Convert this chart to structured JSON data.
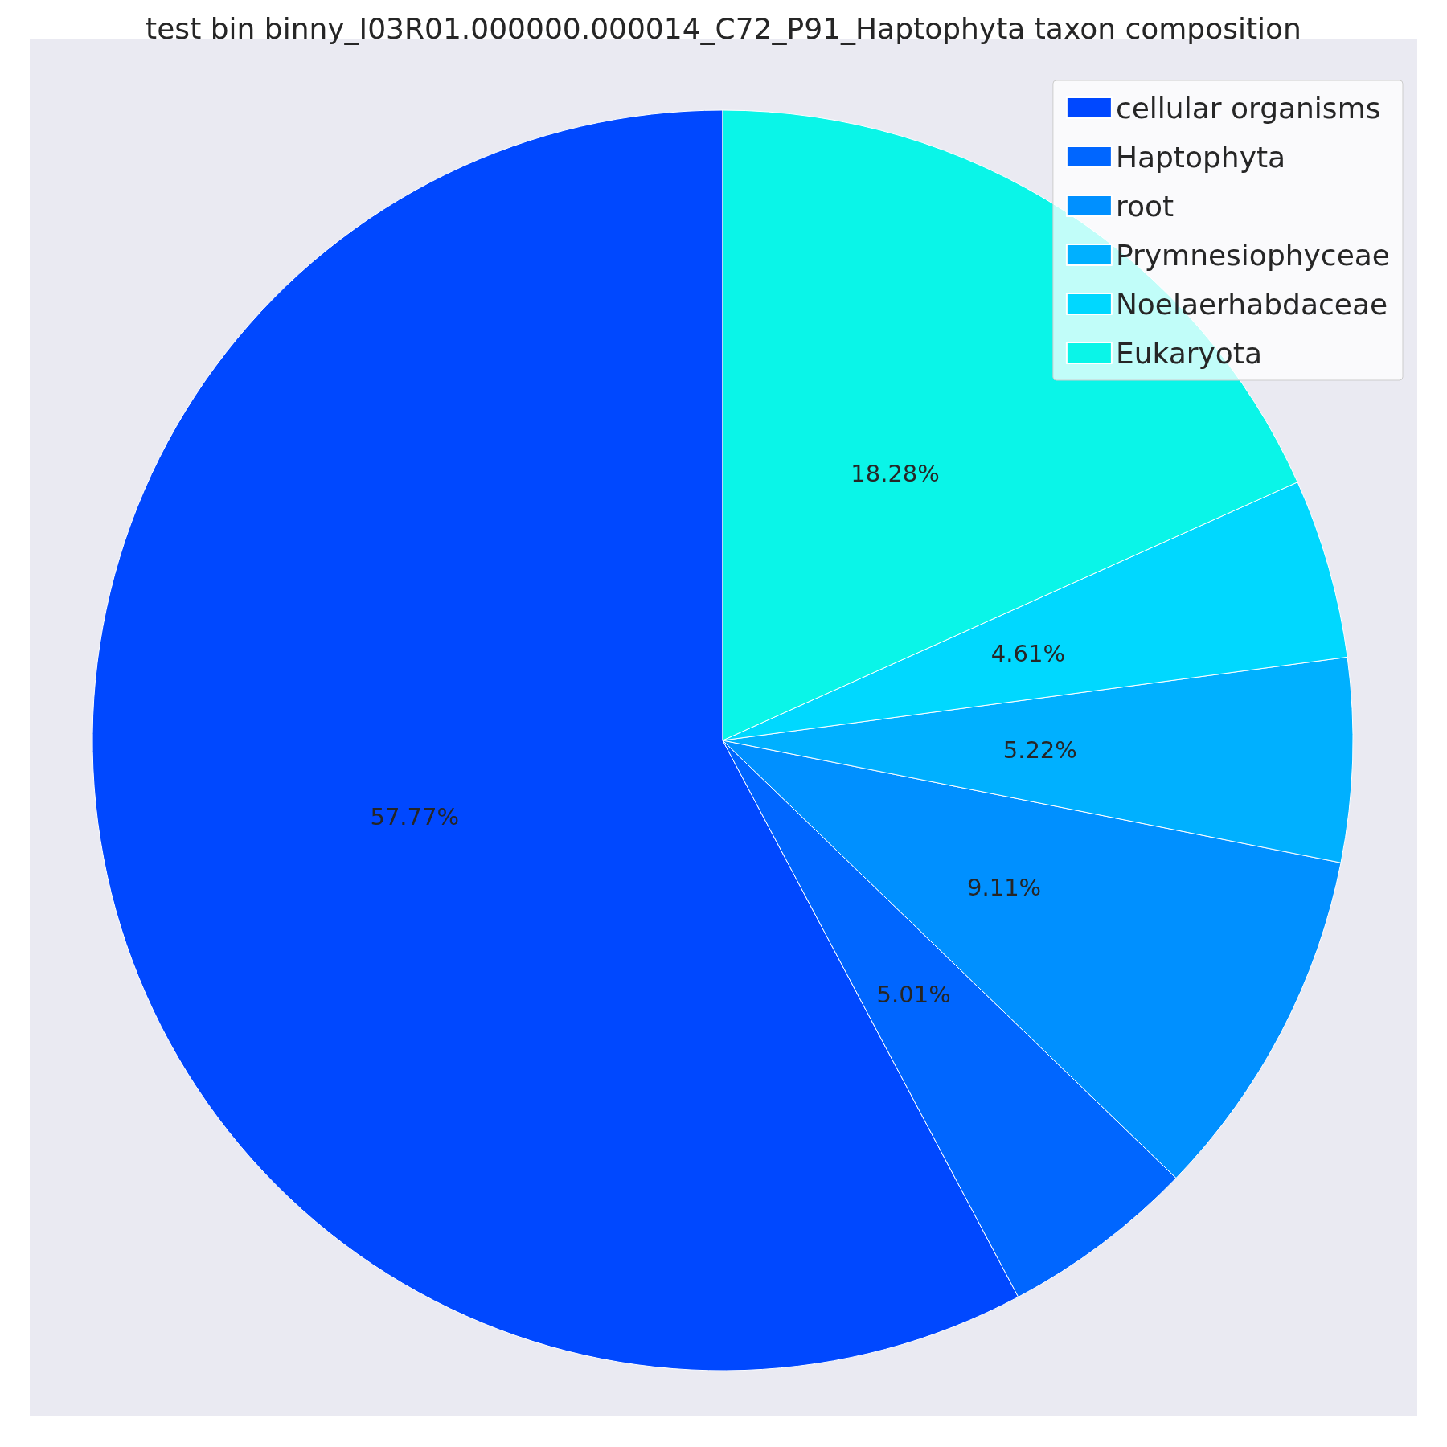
{
  "chart_data": {
    "type": "pie",
    "title": "test bin binny_I03R01.000000.000014_C72_P91_Haptophyta taxon composition",
    "categories": [
      "cellular organisms",
      "Haptophyta",
      "root",
      "Prymnesiophyceae",
      "Noelaerhabdaceae",
      "Eukaryota"
    ],
    "values": [
      57.77,
      5.01,
      9.11,
      5.22,
      4.61,
      18.28
    ],
    "colors": [
      "#0048ff",
      "#0066ff",
      "#0090ff",
      "#00b0ff",
      "#00d8ff",
      "#0af5e8"
    ],
    "value_labels": [
      "57.77%",
      "5.01%",
      "9.11%",
      "5.22%",
      "4.61%",
      "18.28%"
    ],
    "legend": "top right"
  }
}
